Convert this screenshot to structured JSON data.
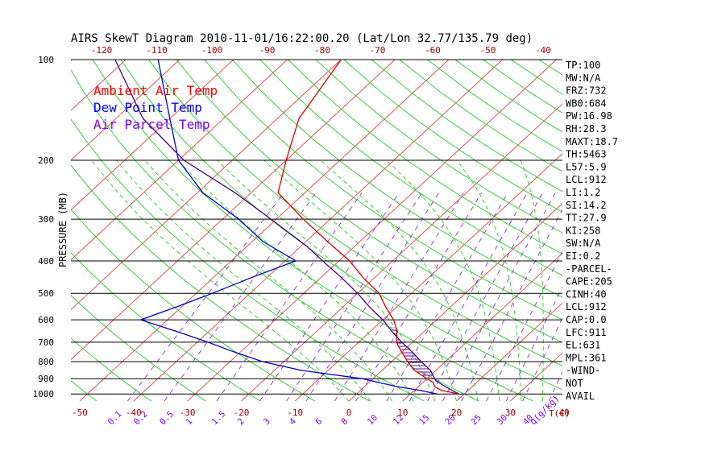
{
  "chart_data": {
    "type": "line",
    "title": "AIRS SkewT Diagram 2010-11-01/16:22:00.20 (Lat/Lon 32.77/135.79 deg)",
    "ylabel": "PRESSURE (MB)",
    "xlabel": "T(C)",
    "mixing_ratio_unit": "q(g/kg)",
    "pressure_ticks": [
      100,
      200,
      300,
      400,
      500,
      600,
      700,
      800,
      900,
      1000
    ],
    "pressure_range": [
      1050,
      100
    ],
    "bottom_temp_ticks": [
      -50,
      -40,
      -30,
      -20,
      -10,
      0,
      10,
      20,
      30,
      40
    ],
    "top_temp_ticks": [
      -120,
      -110,
      -100,
      -90,
      -80,
      -70,
      -60,
      -50,
      -40
    ],
    "mixing_ratio_labels": [
      "0.1",
      "0.2",
      "0.5",
      "1",
      "1.5",
      "2",
      "3",
      "4",
      "6",
      "8",
      "10",
      "12",
      "15",
      "20",
      "25",
      "30",
      "40"
    ],
    "legend": [
      {
        "label": "Ambient Air Temp",
        "color": "#ff0000"
      },
      {
        "label": "Dew Point Temp",
        "color": "#0000ff"
      },
      {
        "label": "Air Parcel Temp",
        "color": "#7f00ff"
      }
    ],
    "series": [
      {
        "name": "Ambient Air Temp",
        "color": "#dd0000",
        "points": [
          [
            1000,
            19
          ],
          [
            975,
            15
          ],
          [
            950,
            13
          ],
          [
            925,
            12
          ],
          [
            900,
            10
          ],
          [
            850,
            6
          ],
          [
            800,
            3
          ],
          [
            750,
            0
          ],
          [
            700,
            -3
          ],
          [
            650,
            -5
          ],
          [
            600,
            -8
          ],
          [
            550,
            -12
          ],
          [
            500,
            -16
          ],
          [
            450,
            -22
          ],
          [
            400,
            -28
          ],
          [
            350,
            -36
          ],
          [
            300,
            -45
          ],
          [
            250,
            -55
          ],
          [
            200,
            -60
          ],
          [
            150,
            -66
          ],
          [
            100,
            -70
          ]
        ]
      },
      {
        "name": "Dew Point Temp",
        "color": "#0000cc",
        "points": [
          [
            1000,
            15
          ],
          [
            975,
            11
          ],
          [
            950,
            6
          ],
          [
            925,
            2
          ],
          [
            900,
            -2
          ],
          [
            850,
            -15
          ],
          [
            800,
            -24
          ],
          [
            750,
            -31
          ],
          [
            700,
            -38
          ],
          [
            650,
            -46
          ],
          [
            600,
            -55
          ],
          [
            550,
            -51
          ],
          [
            500,
            -47
          ],
          [
            450,
            -43
          ],
          [
            400,
            -38
          ],
          [
            350,
            -48
          ],
          [
            300,
            -57
          ],
          [
            250,
            -69
          ],
          [
            200,
            -80
          ],
          [
            150,
            -90
          ],
          [
            100,
            -104
          ]
        ]
      },
      {
        "name": "Air Parcel Temp",
        "color": "#4b0082",
        "points": [
          [
            1000,
            19
          ],
          [
            950,
            15
          ],
          [
            912,
            12
          ],
          [
            850,
            9
          ],
          [
            800,
            5.5
          ],
          [
            750,
            2
          ],
          [
            700,
            -2
          ],
          [
            650,
            -6
          ],
          [
            600,
            -10
          ],
          [
            550,
            -15
          ],
          [
            500,
            -20
          ],
          [
            450,
            -26
          ],
          [
            400,
            -33
          ],
          [
            361,
            -39
          ],
          [
            300,
            -51
          ],
          [
            250,
            -63
          ],
          [
            200,
            -79
          ],
          [
            150,
            -95
          ],
          [
            100,
            -112
          ]
        ]
      }
    ],
    "indices": [
      "TP:100",
      "MW:N/A",
      "FRZ:732",
      "WB0:684",
      "PW:16.98",
      "RH:28.3",
      "MAXT:18.7",
      "TH:5463",
      "L57:5.9",
      "LCL:912",
      "LI:1.2",
      "SI:14.2",
      "TT:27.9",
      "KI:258",
      "SW:N/A",
      "EI:0.2",
      "-PARCEL-",
      "CAPE:205",
      "CINH:40",
      "LCL:912",
      "CAP:0.0",
      "LFC:911",
      "EL:631",
      "MPL:361",
      "-WIND-",
      "NOT",
      "AVAIL"
    ]
  }
}
